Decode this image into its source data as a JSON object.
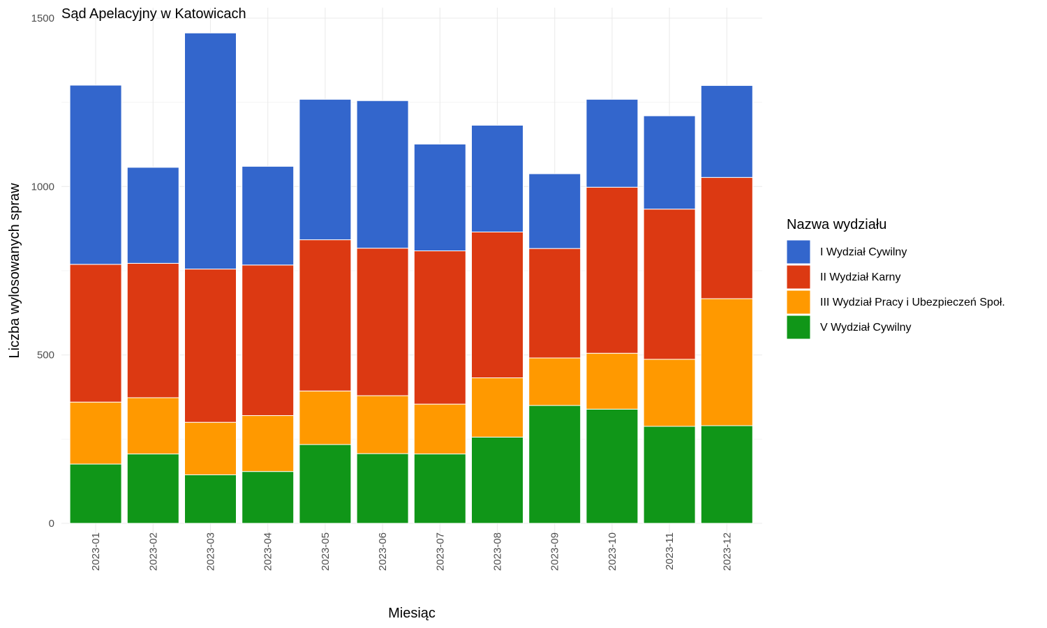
{
  "chart_data": {
    "type": "bar",
    "stacked": true,
    "title": "Sąd Apelacyjny w Katowicach",
    "xlabel": "Miesiąc",
    "ylabel": "Liczba wylosowanych spraw",
    "ylim": [
      0,
      1500
    ],
    "yticks": [
      0,
      500,
      1000,
      1500
    ],
    "grid": true,
    "legend_position": "right",
    "legend_title": "Nazwa wydziału",
    "categories": [
      "2023-01",
      "2023-02",
      "2023-03",
      "2023-04",
      "2023-05",
      "2023-06",
      "2023-07",
      "2023-08",
      "2023-09",
      "2023-10",
      "2023-11",
      "2023-12"
    ],
    "series": [
      {
        "name": "V Wydział Cywilny",
        "color": "#109618",
        "values": [
          176,
          206,
          144,
          154,
          234,
          207,
          206,
          256,
          350,
          339,
          288,
          290
        ]
      },
      {
        "name": "III Wydział Pracy i Ubezpieczeń Społ.",
        "color": "#FF9900",
        "values": [
          184,
          167,
          156,
          166,
          159,
          172,
          148,
          176,
          141,
          166,
          199,
          377
        ]
      },
      {
        "name": "II Wydział Karny",
        "color": "#DC3912",
        "values": [
          409,
          399,
          455,
          447,
          449,
          438,
          455,
          433,
          325,
          493,
          446,
          360
        ]
      },
      {
        "name": "I Wydział Cywilny",
        "color": "#3366CC",
        "values": [
          532,
          285,
          701,
          293,
          417,
          438,
          317,
          317,
          222,
          261,
          277,
          273
        ]
      }
    ],
    "legend_order": [
      "I Wydział Cywilny",
      "II Wydział Karny",
      "III Wydział Pracy i Ubezpieczeń Społ.",
      "V Wydział Cywilny"
    ]
  }
}
